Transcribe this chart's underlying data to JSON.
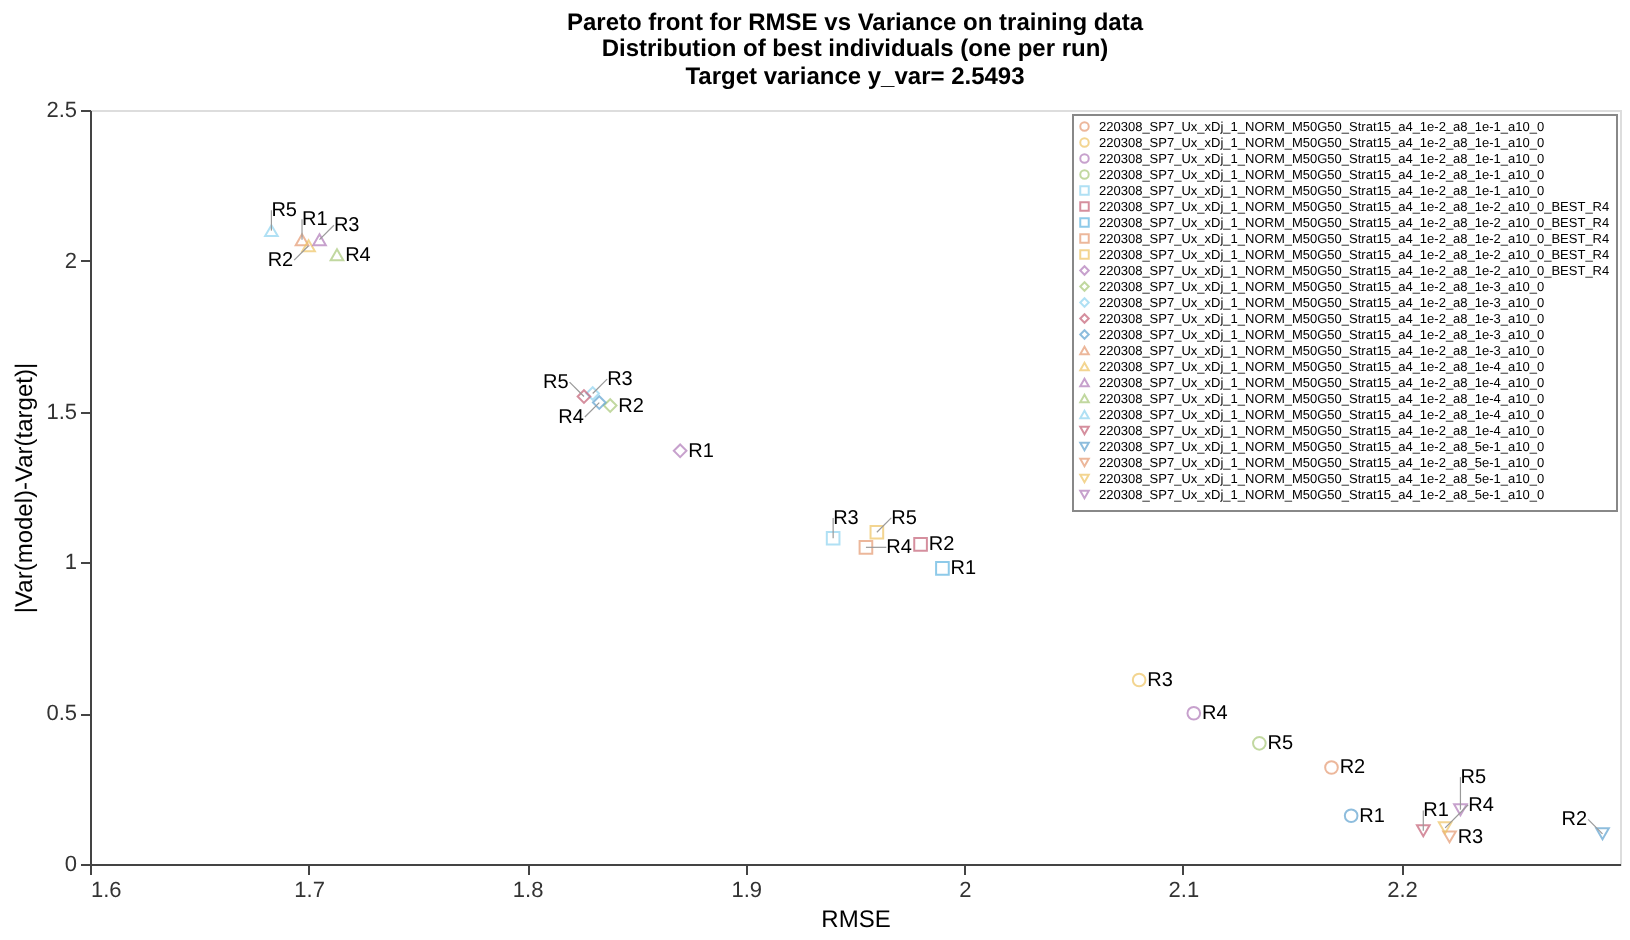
{
  "chart_data": {
    "type": "scatter",
    "title": "Pareto front for RMSE vs Variance on training data",
    "subtitle": "Distribution of best individuals (one per run)\nTarget variance y_var= 2.5493",
    "xlabel": "RMSE",
    "ylabel": "|Var(model)-Var(target)|",
    "xlim": [
      1.6,
      2.3
    ],
    "ylim": [
      0,
      2.5
    ],
    "xticks": [
      1.6,
      1.7,
      1.8,
      1.9,
      2,
      2.1,
      2.2
    ],
    "yticks": [
      0,
      0.5,
      1,
      1.5,
      2,
      2.5
    ],
    "grid": false,
    "legend": "top right",
    "series": [
      {
        "name": "220308_SP7_Ux_xDj_1_NORM_M50G50_Strat15_a4_1e-2_a8_1e-1_a10_0",
        "color": "#e59a72",
        "marker": "circle",
        "x": [
          2.168
        ],
        "values": [
          0.32
        ]
      },
      {
        "name": "220308_SP7_Ux_xDj_1_NORM_M50G50_Strat15_a4_1e-2_a8_1e-1_a10_0",
        "color": "#eec463",
        "marker": "circle",
        "x": [
          2.08
        ],
        "values": [
          0.61
        ]
      },
      {
        "name": "220308_SP7_Ux_xDj_1_NORM_M50G50_Strat15_a4_1e-2_a8_1e-1_a10_0",
        "color": "#b07ab8",
        "marker": "circle",
        "x": [
          2.105
        ],
        "values": [
          0.5
        ]
      },
      {
        "name": "220308_SP7_Ux_xDj_1_NORM_M50G50_Strat15_a4_1e-2_a8_1e-1_a10_0",
        "color": "#a8c878",
        "marker": "circle",
        "x": [
          2.135
        ],
        "values": [
          0.4
        ]
      },
      {
        "name": "220308_SP7_Ux_xDj_1_NORM_M50G50_Strat15_a4_1e-2_a8_1e-1_a10_0",
        "color": "#8fd4f0",
        "marker": "square",
        "x": [
          1.94
        ],
        "values": [
          1.08
        ]
      },
      {
        "name": "220308_SP7_Ux_xDj_1_NORM_M50G50_Strat15_a4_1e-2_a8_1e-2_a10_0_BEST_R4",
        "color": "#c46076",
        "marker": "square",
        "x": [
          1.98
        ],
        "values": [
          1.06
        ]
      },
      {
        "name": "220308_SP7_Ux_xDj_1_NORM_M50G50_Strat15_a4_1e-2_a8_1e-2_a10_0_BEST_R4",
        "color": "#5fb4e0",
        "marker": "square",
        "x": [
          1.99
        ],
        "values": [
          0.98
        ]
      },
      {
        "name": "220308_SP7_Ux_xDj_1_NORM_M50G50_Strat15_a4_1e-2_a8_1e-2_a10_0_BEST_R4",
        "color": "#e59a72",
        "marker": "square",
        "x": [
          1.955
        ],
        "values": [
          1.05
        ]
      },
      {
        "name": "220308_SP7_Ux_xDj_1_NORM_M50G50_Strat15_a4_1e-2_a8_1e-2_a10_0_BEST_R4",
        "color": "#eec463",
        "marker": "square",
        "x": [
          1.96
        ],
        "values": [
          1.1
        ]
      },
      {
        "name": "220308_SP7_Ux_xDj_1_NORM_M50G50_Strat15_a4_1e-2_a8_1e-2_a10_0_BEST_R4",
        "color": "#b07ab8",
        "marker": "diamond",
        "x": [
          1.87
        ],
        "values": [
          1.37
        ]
      },
      {
        "name": "220308_SP7_Ux_xDj_1_NORM_M50G50_Strat15_a4_1e-2_a8_1e-3_a10_0",
        "color": "#a8c878",
        "marker": "diamond",
        "x": [
          1.838
        ],
        "values": [
          1.52
        ]
      },
      {
        "name": "220308_SP7_Ux_xDj_1_NORM_M50G50_Strat15_a4_1e-2_a8_1e-3_a10_0",
        "color": "#8fd4f0",
        "marker": "diamond",
        "x": [
          1.83
        ],
        "values": [
          1.56
        ]
      },
      {
        "name": "220308_SP7_Ux_xDj_1_NORM_M50G50_Strat15_a4_1e-2_a8_1e-3_a10_0",
        "color": "#c46076",
        "marker": "diamond",
        "x": [
          1.826
        ],
        "values": [
          1.55
        ]
      },
      {
        "name": "220308_SP7_Ux_xDj_1_NORM_M50G50_Strat15_a4_1e-2_a8_1e-3_a10_0",
        "color": "#5fa2d0",
        "marker": "diamond",
        "x": [
          1.833
        ],
        "values": [
          1.53
        ]
      },
      {
        "name": "220308_SP7_Ux_xDj_1_NORM_M50G50_Strat15_a4_1e-2_a8_1e-3_a10_0",
        "color": "#e59a72",
        "marker": "triangle",
        "x": [
          1.697
        ],
        "values": [
          2.07
        ]
      },
      {
        "name": "220308_SP7_Ux_xDj_1_NORM_M50G50_Strat15_a4_1e-2_a8_1e-4_a10_0",
        "color": "#eec463",
        "marker": "triangle",
        "x": [
          1.7
        ],
        "values": [
          2.05
        ]
      },
      {
        "name": "220308_SP7_Ux_xDj_1_NORM_M50G50_Strat15_a4_1e-2_a8_1e-4_a10_0",
        "color": "#b07ab8",
        "marker": "triangle",
        "x": [
          1.705
        ],
        "values": [
          2.07
        ]
      },
      {
        "name": "220308_SP7_Ux_xDj_1_NORM_M50G50_Strat15_a4_1e-2_a8_1e-4_a10_0",
        "color": "#a8c878",
        "marker": "triangle",
        "x": [
          1.713
        ],
        "values": [
          2.02
        ]
      },
      {
        "name": "220308_SP7_Ux_xDj_1_NORM_M50G50_Strat15_a4_1e-2_a8_1e-4_a10_0",
        "color": "#8fd4f0",
        "marker": "triangle",
        "x": [
          1.683
        ],
        "values": [
          2.1
        ]
      },
      {
        "name": "220308_SP7_Ux_xDj_1_NORM_M50G50_Strat15_a4_1e-2_a8_1e-4_a10_0",
        "color": "#c46076",
        "marker": "triangle-down",
        "x": [
          2.21
        ],
        "values": [
          0.11
        ]
      },
      {
        "name": "220308_SP7_Ux_xDj_1_NORM_M50G50_Strat15_a4_1e-2_a8_5e-1_a10_0",
        "color": "#5fa2d0",
        "marker": "triangle-down",
        "x": [
          2.292
        ],
        "values": [
          0.1
        ]
      },
      {
        "name": "220308_SP7_Ux_xDj_1_NORM_M50G50_Strat15_a4_1e-2_a8_5e-1_a10_0",
        "color": "#e59a72",
        "marker": "triangle-down",
        "x": [
          2.222
        ],
        "values": [
          0.09
        ]
      },
      {
        "name": "220308_SP7_Ux_xDj_1_NORM_M50G50_Strat15_a4_1e-2_a8_5e-1_a10_0",
        "color": "#eec463",
        "marker": "triangle-down",
        "x": [
          2.22
        ],
        "values": [
          0.12
        ]
      },
      {
        "name": "220308_SP7_Ux_xDj_1_NORM_M50G50_Strat15_a4_1e-2_a8_5e-1_a10_0",
        "color": "#b07ab8",
        "marker": "triangle-down",
        "x": [
          2.227
        ],
        "values": [
          0.18
        ]
      },
      {
        "color": "#5fa2d0",
        "marker": "circle",
        "x": [
          2.177
        ],
        "values": [
          0.16
        ]
      }
    ],
    "annotations": [
      {
        "text": "R2",
        "x": 2.168,
        "y": 0.32
      },
      {
        "text": "R3",
        "x": 2.08,
        "y": 0.61
      },
      {
        "text": "R4",
        "x": 2.105,
        "y": 0.5
      },
      {
        "text": "R5",
        "x": 2.135,
        "y": 0.4
      },
      {
        "text": "R3",
        "x": 1.94,
        "y": 1.08
      },
      {
        "text": "R2",
        "x": 1.98,
        "y": 1.06
      },
      {
        "text": "R1",
        "x": 1.99,
        "y": 0.98
      },
      {
        "text": "R4",
        "x": 1.955,
        "y": 1.05
      },
      {
        "text": "R5",
        "x": 1.96,
        "y": 1.1
      },
      {
        "text": "R1",
        "x": 1.87,
        "y": 1.37
      },
      {
        "text": "R2",
        "x": 1.838,
        "y": 1.52
      },
      {
        "text": "R3",
        "x": 1.83,
        "y": 1.56
      },
      {
        "text": "R5",
        "x": 1.826,
        "y": 1.55
      },
      {
        "text": "R4",
        "x": 1.833,
        "y": 1.53
      },
      {
        "text": "R1",
        "x": 1.697,
        "y": 2.07
      },
      {
        "text": "R2",
        "x": 1.7,
        "y": 2.05
      },
      {
        "text": "R3",
        "x": 1.705,
        "y": 2.07
      },
      {
        "text": "R4",
        "x": 1.713,
        "y": 2.02
      },
      {
        "text": "R5",
        "x": 1.683,
        "y": 2.1
      },
      {
        "text": "R1",
        "x": 2.21,
        "y": 0.11
      },
      {
        "text": "R2",
        "x": 2.292,
        "y": 0.1
      },
      {
        "text": "R3",
        "x": 2.222,
        "y": 0.09
      },
      {
        "text": "R4",
        "x": 2.22,
        "y": 0.12
      },
      {
        "text": "R5",
        "x": 2.227,
        "y": 0.18
      },
      {
        "text": "R1",
        "x": 2.177,
        "y": 0.16
      }
    ]
  }
}
